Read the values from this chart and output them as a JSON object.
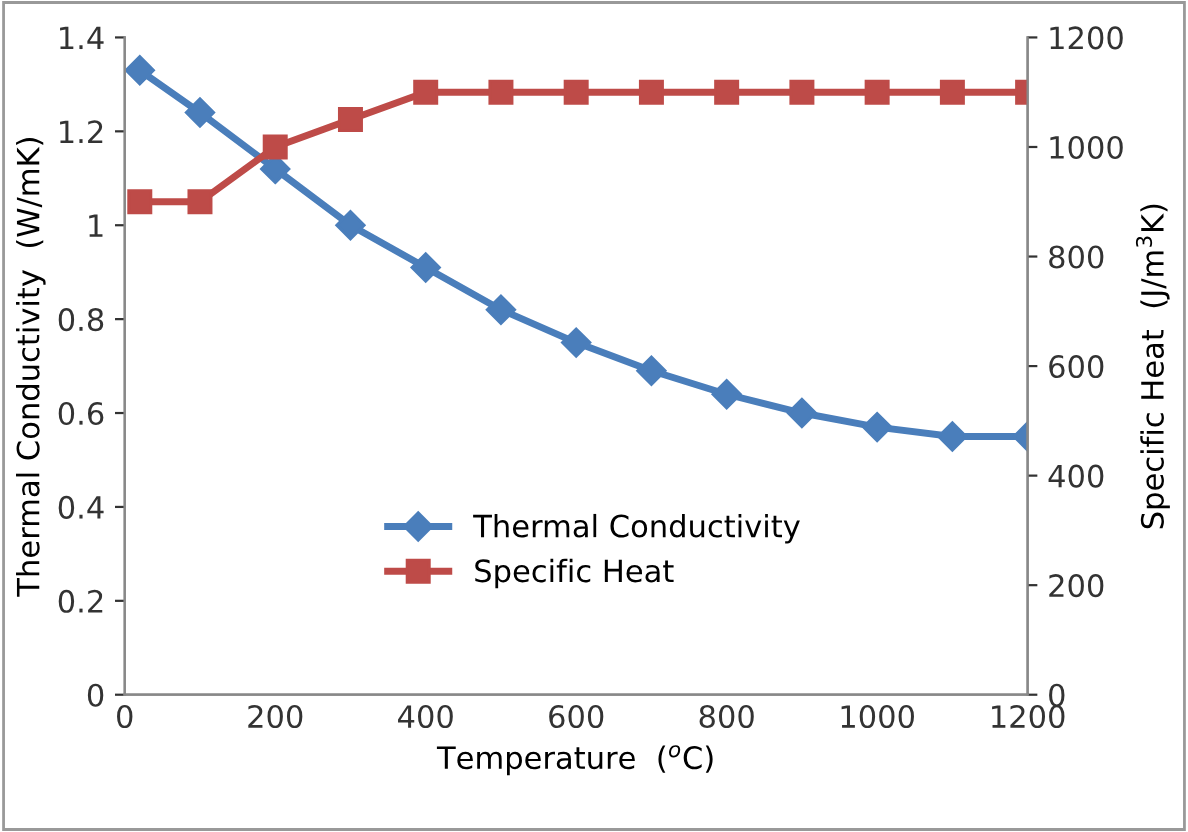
{
  "chart_data": {
    "type": "line",
    "xlabel": "Temperature  ($^{o}$C)",
    "ylabel": "Thermal Conductivity  (W/mK)",
    "y2label": "Specific Heat  (J/m$^{3}$K)",
    "x": [
      20,
      100,
      200,
      300,
      400,
      500,
      600,
      700,
      800,
      900,
      1000,
      1100,
      1200
    ],
    "series": [
      {
        "name": "Thermal Conductivity",
        "color": "#4a7ebb",
        "marker": "diamond",
        "values": [
          1.33,
          1.24,
          1.12,
          1.0,
          0.91,
          0.82,
          0.75,
          0.69,
          0.64,
          0.6,
          0.57,
          0.55,
          0.55
        ]
      },
      {
        "name": "Specific Heat",
        "color": "#be4b48",
        "marker": "square",
        "axis": "y2",
        "values": [
          900,
          900,
          1000,
          1050,
          1100,
          1100,
          1100,
          1100,
          1100,
          1100,
          1100,
          1100,
          1100
        ]
      }
    ],
    "xlim": [
      0,
      1200
    ],
    "xticks": [
      0,
      200,
      400,
      600,
      800,
      1000,
      1200
    ],
    "ylim": [
      0,
      1.4
    ],
    "yticks": [
      0,
      0.2,
      0.4,
      0.6,
      0.8,
      1,
      1.2,
      1.4
    ],
    "y2lim": [
      0,
      1200
    ],
    "y2ticks": [
      0,
      200,
      400,
      600,
      800,
      1000,
      1200
    ],
    "grid": false,
    "legend": "bottom",
    "line_style": "solid"
  }
}
